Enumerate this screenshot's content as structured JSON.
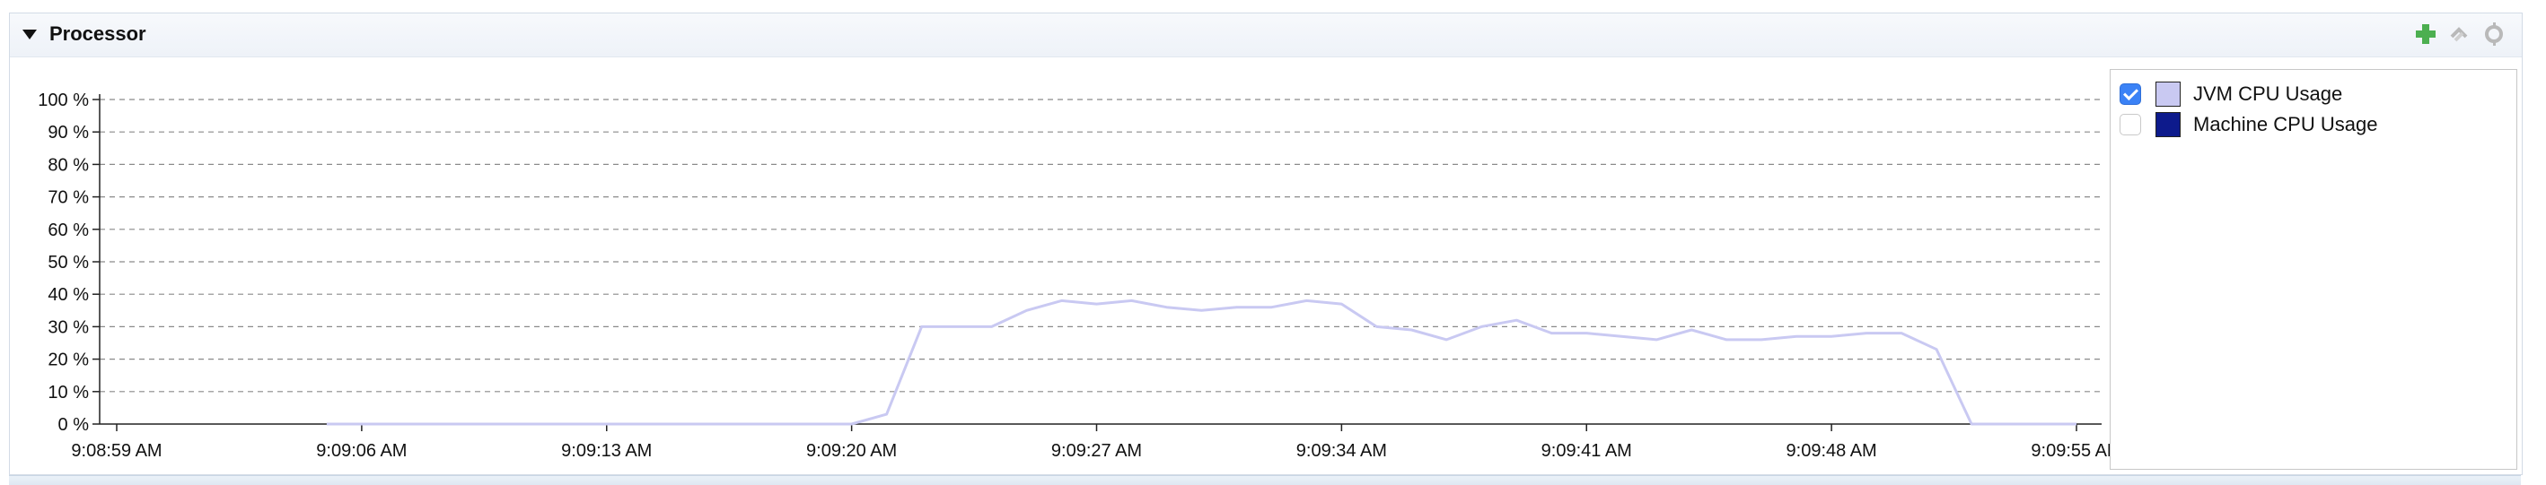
{
  "panel": {
    "title": "Processor",
    "toolbar": [
      {
        "name": "add-chart-icon",
        "color": "#4caf50"
      },
      {
        "name": "sync-icon",
        "color": "#b9b9b9"
      },
      {
        "name": "settings-icon",
        "color": "#b9b9b9"
      }
    ]
  },
  "legend": {
    "items": [
      {
        "label": "JVM CPU Usage",
        "checked": true,
        "color": "#c9c9f2"
      },
      {
        "label": "Machine CPU Usage",
        "checked": false,
        "color": "#0d1a8c"
      }
    ]
  },
  "chart_data": {
    "type": "line",
    "x_ticks": [
      "9:08:59 AM",
      "9:09:06 AM",
      "9:09:13 AM",
      "9:09:20 AM",
      "9:09:27 AM",
      "9:09:34 AM",
      "9:09:41 AM",
      "9:09:48 AM",
      "9:09:55 AM"
    ],
    "y_ticks": [
      "0 %",
      "10 %",
      "20 %",
      "30 %",
      "40 %",
      "50 %",
      "60 %",
      "70 %",
      "80 %",
      "90 %",
      "100 %"
    ],
    "ylim": [
      0,
      100
    ],
    "grid": true,
    "series": [
      {
        "name": "JVM CPU Usage",
        "color": "#c9c9f2",
        "x": [
          "9:09:05 AM",
          "9:09:06 AM",
          "9:09:07 AM",
          "9:09:08 AM",
          "9:09:09 AM",
          "9:09:10 AM",
          "9:09:11 AM",
          "9:09:12 AM",
          "9:09:13 AM",
          "9:09:14 AM",
          "9:09:15 AM",
          "9:09:16 AM",
          "9:09:17 AM",
          "9:09:18 AM",
          "9:09:19 AM",
          "9:09:20 AM",
          "9:09:21 AM",
          "9:09:22 AM",
          "9:09:23 AM",
          "9:09:24 AM",
          "9:09:25 AM",
          "9:09:26 AM",
          "9:09:27 AM",
          "9:09:28 AM",
          "9:09:29 AM",
          "9:09:30 AM",
          "9:09:31 AM",
          "9:09:32 AM",
          "9:09:33 AM",
          "9:09:34 AM",
          "9:09:35 AM",
          "9:09:36 AM",
          "9:09:37 AM",
          "9:09:38 AM",
          "9:09:39 AM",
          "9:09:40 AM",
          "9:09:41 AM",
          "9:09:42 AM",
          "9:09:43 AM",
          "9:09:44 AM",
          "9:09:45 AM",
          "9:09:46 AM",
          "9:09:47 AM",
          "9:09:48 AM",
          "9:09:49 AM",
          "9:09:50 AM",
          "9:09:51 AM",
          "9:09:52 AM",
          "9:09:53 AM",
          "9:09:54 AM",
          "9:09:55 AM"
        ],
        "values": [
          0,
          0,
          0,
          0,
          0,
          0,
          0,
          0,
          0,
          0,
          0,
          0,
          0,
          0,
          0,
          0,
          3,
          30,
          30,
          30,
          35,
          38,
          37,
          38,
          36,
          35,
          36,
          36,
          38,
          37,
          30,
          29,
          26,
          30,
          32,
          28,
          28,
          27,
          26,
          29,
          26,
          26,
          27,
          27,
          28,
          28,
          23,
          0,
          0,
          0,
          0
        ]
      }
    ]
  }
}
